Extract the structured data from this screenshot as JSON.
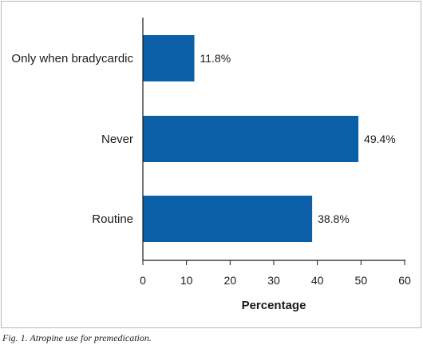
{
  "chart_data": {
    "type": "bar",
    "orientation": "horizontal",
    "categories": [
      "Only when bradycardic",
      "Never",
      "Routine"
    ],
    "values": [
      11.8,
      49.4,
      38.8
    ],
    "value_labels": [
      "11.8%",
      "49.4%",
      "38.8%"
    ],
    "xlabel": "Percentage",
    "ylabel": "",
    "xlim": [
      0,
      60
    ],
    "xticks": [
      0,
      10,
      20,
      30,
      40,
      50,
      60
    ],
    "grid": false,
    "bar_color": "#0a5fa6"
  },
  "caption": "Fig. 1. Atropine use for premedication."
}
